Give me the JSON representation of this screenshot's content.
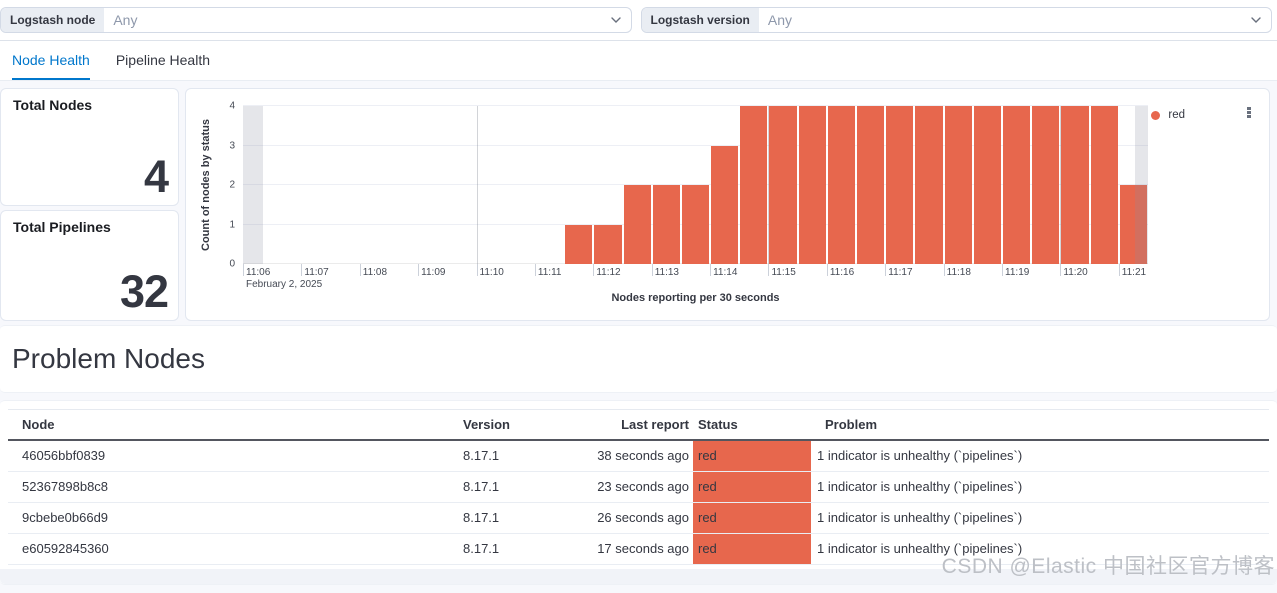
{
  "filters": {
    "node": {
      "label": "Logstash node",
      "value": "Any"
    },
    "version": {
      "label": "Logstash version",
      "value": "Any"
    }
  },
  "tabs": [
    {
      "label": "Node Health",
      "active": true
    },
    {
      "label": "Pipeline Health",
      "active": false
    }
  ],
  "kpis": [
    {
      "title": "Total Nodes",
      "value": "4"
    },
    {
      "title": "Total Pipelines",
      "value": "32"
    }
  ],
  "chart_data": {
    "type": "bar",
    "title": "",
    "xlabel": "Nodes reporting per 30 seconds",
    "ylabel": "Count of nodes by status",
    "ylim": [
      0,
      4
    ],
    "y_ticks": [
      0,
      1,
      2,
      3,
      4
    ],
    "x_start": "11:06:00",
    "x_end": "11:21:30",
    "bucket_seconds": 30,
    "x_tick_labels": [
      "11:06",
      "11:07",
      "11:08",
      "11:09",
      "11:10",
      "11:11",
      "11:12",
      "11:13",
      "11:14",
      "11:15",
      "11:16",
      "11:17",
      "11:18",
      "11:19",
      "11:20",
      "11:21"
    ],
    "x_context_label": "February 2, 2025",
    "grid_vlines": [
      "11:10:00",
      "11:15:00",
      "11:20:00"
    ],
    "grid": true,
    "series": [
      {
        "name": "red",
        "color": "#e7674d",
        "points": [
          [
            "11:11:30",
            1
          ],
          [
            "11:12:00",
            1
          ],
          [
            "11:12:30",
            2
          ],
          [
            "11:13:00",
            2
          ],
          [
            "11:13:30",
            2
          ],
          [
            "11:14:00",
            3
          ],
          [
            "11:14:30",
            4
          ],
          [
            "11:15:00",
            4
          ],
          [
            "11:15:30",
            4
          ],
          [
            "11:16:00",
            4
          ],
          [
            "11:16:30",
            4
          ],
          [
            "11:17:00",
            4
          ],
          [
            "11:17:30",
            4
          ],
          [
            "11:18:00",
            4
          ],
          [
            "11:18:30",
            4
          ],
          [
            "11:19:00",
            4
          ],
          [
            "11:19:30",
            4
          ],
          [
            "11:20:00",
            4
          ],
          [
            "11:20:30",
            4
          ],
          [
            "11:21:00",
            2
          ]
        ]
      }
    ],
    "partial_buckets_bands": [
      {
        "from": "11:06:00",
        "to": "11:06:21"
      },
      {
        "from": "11:21:17",
        "to": "11:21:30"
      }
    ],
    "legend": {
      "position": "right",
      "items": [
        {
          "label": "red",
          "color": "#e7674d"
        }
      ]
    }
  },
  "problem_nodes": {
    "heading": "Problem Nodes",
    "table": {
      "columns": [
        "Node",
        "Version",
        "Last report",
        "Status",
        "Problem"
      ],
      "rows": [
        {
          "node": "46056bbf0839",
          "version": "8.17.1",
          "last_report": "38 seconds ago",
          "status": "red",
          "problem": "1 indicator is unhealthy (`pipelines`)"
        },
        {
          "node": "52367898b8c8",
          "version": "8.17.1",
          "last_report": "23 seconds ago",
          "status": "red",
          "problem": "1 indicator is unhealthy (`pipelines`)"
        },
        {
          "node": "9cbebe0b66d9",
          "version": "8.17.1",
          "last_report": "26 seconds ago",
          "status": "red",
          "problem": "1 indicator is unhealthy (`pipelines`)"
        },
        {
          "node": "e60592845360",
          "version": "8.17.1",
          "last_report": "17 seconds ago",
          "status": "red",
          "problem": "1 indicator is unhealthy (`pipelines`)"
        }
      ]
    }
  },
  "watermark": "CSDN @Elastic 中国社区官方博客",
  "colors": {
    "accent_red": "#e7674d",
    "primary_blue": "#0077cc",
    "status_cell_bg": "#e7674d",
    "page_background": "#f7f8fc"
  }
}
